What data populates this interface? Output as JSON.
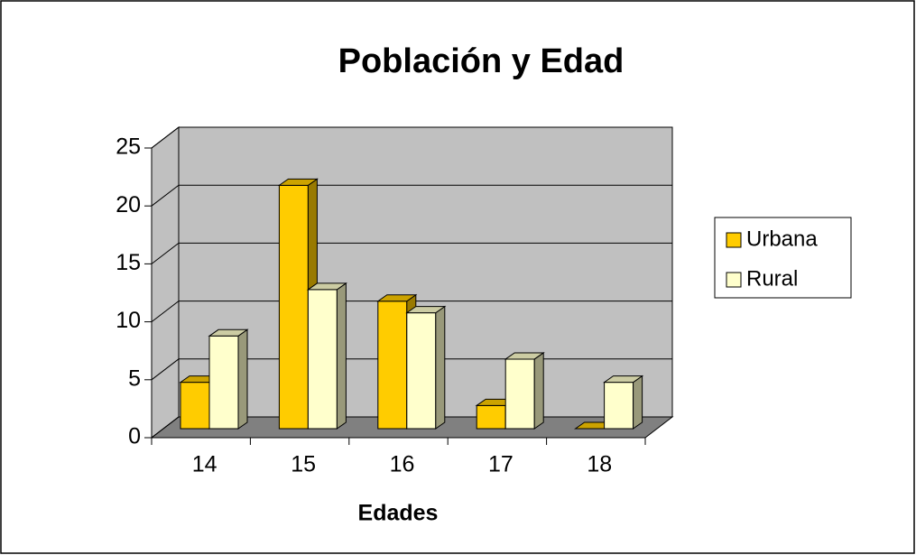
{
  "chart_data": {
    "type": "bar3d",
    "title": "Población y Edad",
    "x_label": "Edades",
    "categories": [
      "14",
      "15",
      "16",
      "17",
      "18"
    ],
    "series": [
      {
        "name": "Urbana",
        "color": "#ffcc00",
        "values": [
          4,
          21,
          11,
          2,
          0
        ]
      },
      {
        "name": "Rural",
        "color": "#ffffcc",
        "values": [
          8,
          12,
          10,
          6,
          4
        ]
      }
    ],
    "ylim": [
      0,
      25
    ],
    "yticks": [
      0,
      5,
      10,
      15,
      20,
      25
    ],
    "grid": true,
    "legend": "right"
  }
}
